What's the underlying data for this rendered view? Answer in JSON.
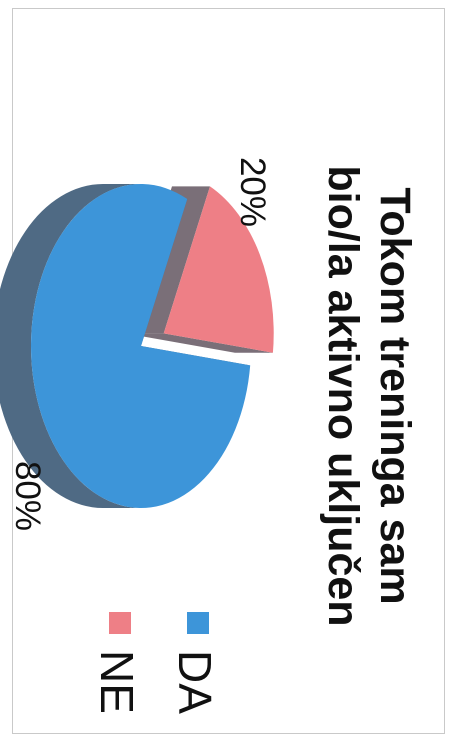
{
  "chart_data": {
    "type": "pie",
    "title": "Tokom treninga sam bio/la aktivno uključen",
    "title_lines": [
      "Tokom treninga sam",
      "bio/la aktivno uključen"
    ],
    "categories": [
      "DA",
      "NE"
    ],
    "values": [
      80,
      20
    ],
    "data_labels": [
      "80%",
      "20%"
    ],
    "legend": [
      "DA",
      "NE"
    ],
    "legend_position": "bottom",
    "style": "3d-exploded",
    "colors": {
      "DA": "#3d95d9",
      "NE": "#ee7f86"
    },
    "side_colors": {
      "DA": "#4f6a84",
      "NE": "#7a6f78"
    }
  }
}
